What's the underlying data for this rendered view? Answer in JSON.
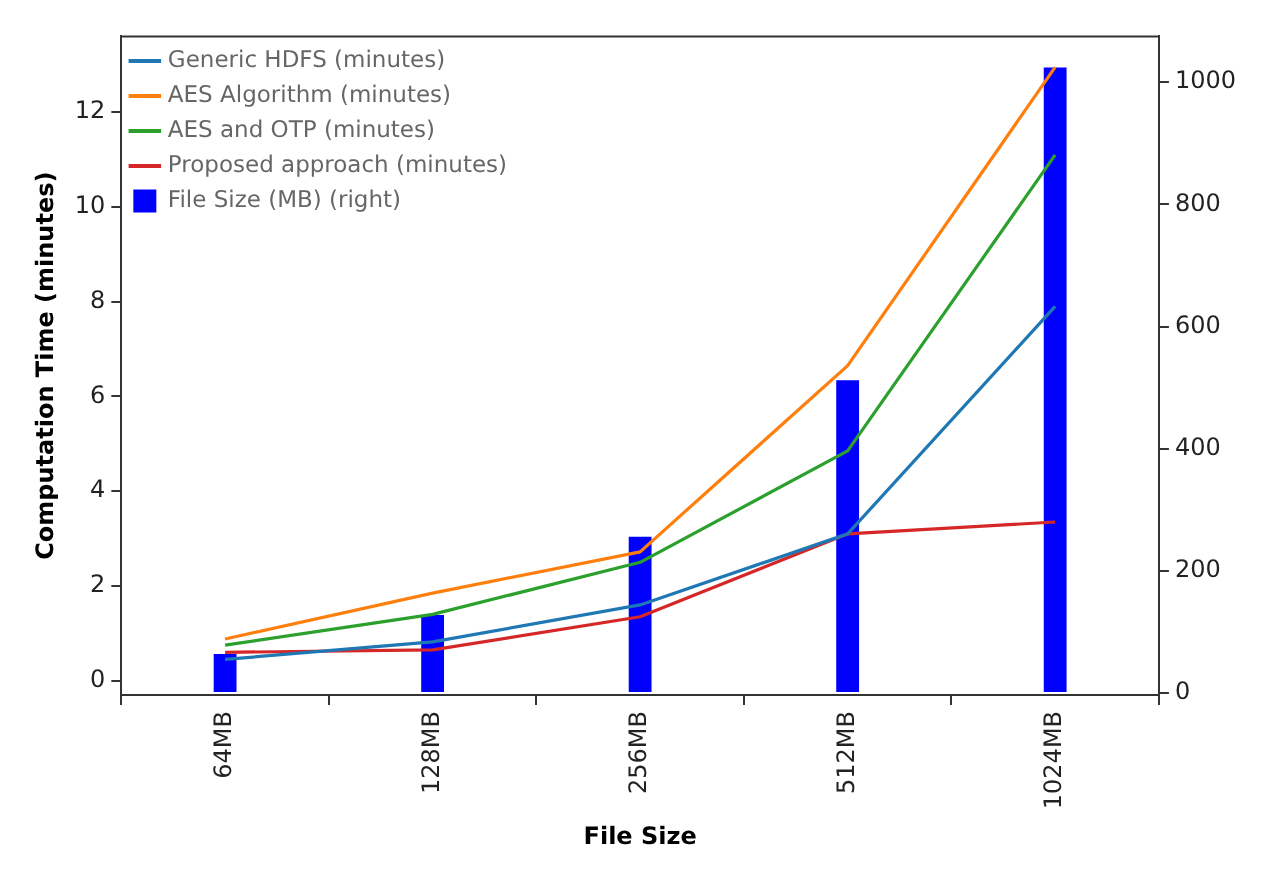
{
  "chart_data": {
    "type": "line",
    "xlabel": "File Size",
    "ylabel": "Computation Time (minutes)",
    "categories": [
      "64MB",
      "128MB",
      "256MB",
      "512MB",
      "1024MB"
    ],
    "series": [
      {
        "name": "Generic HDFS (minutes)",
        "color": "#1f77b4",
        "values": [
          0.45,
          0.82,
          1.6,
          3.1,
          7.9
        ]
      },
      {
        "name": "AES Algorithm (minutes)",
        "color": "#ff7f0e",
        "values": [
          0.88,
          1.85,
          2.72,
          6.65,
          12.95
        ]
      },
      {
        "name": "AES and OTP (minutes)",
        "color": "#2ca02c",
        "values": [
          0.75,
          1.4,
          2.5,
          4.85,
          11.1
        ]
      },
      {
        "name": "Proposed approach (minutes)",
        "color": "#d62728",
        "values": [
          0.6,
          0.65,
          1.35,
          3.1,
          3.35
        ]
      },
      {
        "name": "File Size (MB) (right)",
        "type": "bar",
        "axis": "y2",
        "color": "#0000ff",
        "values": [
          64,
          128,
          256,
          512,
          1024
        ]
      }
    ],
    "ylim": [
      -0.3,
      13.6
    ],
    "yticks": [
      0,
      2,
      4,
      6,
      8,
      10,
      12
    ],
    "y2lim": [
      -3,
      1075
    ],
    "y2ticks": [
      0,
      200,
      400,
      600,
      800,
      1000
    ],
    "grid": false,
    "legend": "top left",
    "marker": "none",
    "line_style": "solid"
  }
}
